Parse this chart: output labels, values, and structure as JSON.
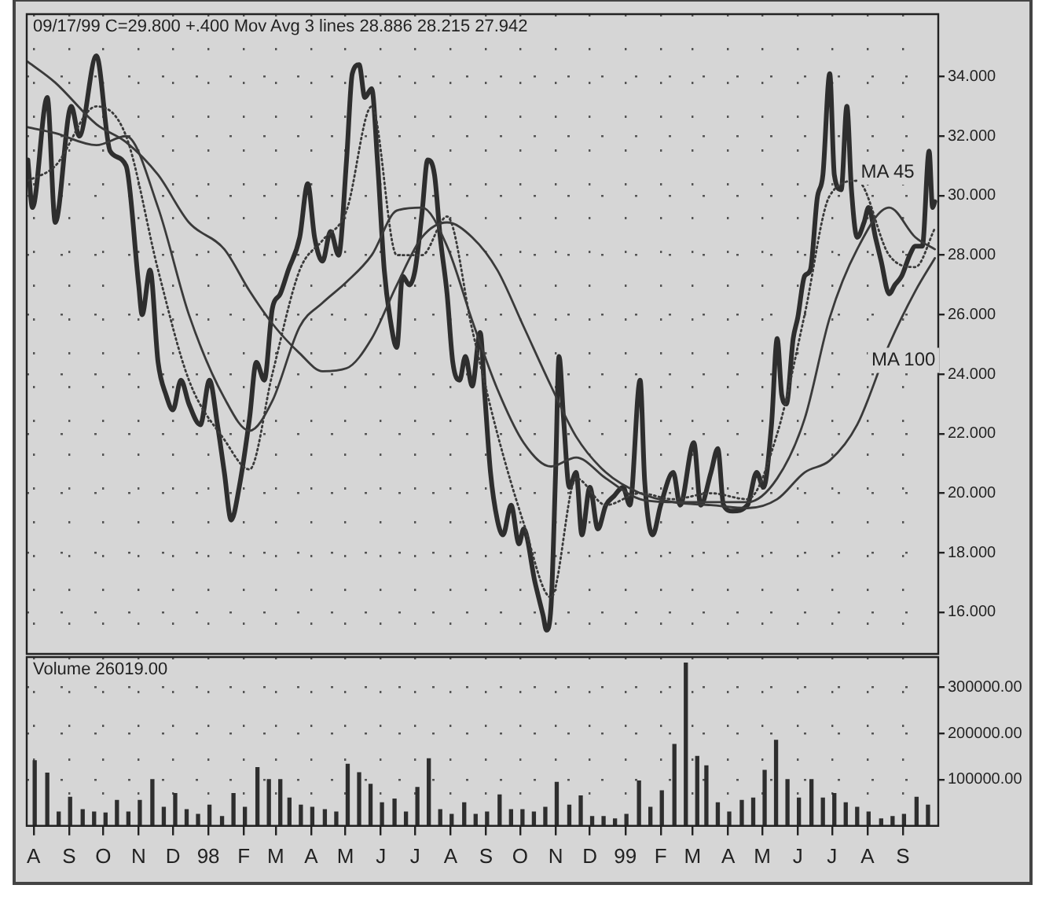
{
  "chart_data": [
    {
      "type": "line",
      "title": "09/17/99 C=29.800 +.400 Mov Avg 3 lines 28.886 28.215 27.942",
      "xlim": [
        "1997-07-14",
        "1999-09-20"
      ],
      "xticks": [
        {
          "value": "1997-07-20",
          "label": null
        },
        {
          "value": "1997-08-20",
          "label": null
        },
        {
          "value": "1997-09-19",
          "label": null
        },
        {
          "value": "1997-10-20",
          "label": null
        },
        {
          "value": "1997-11-19",
          "label": null
        },
        {
          "value": "1997-12-20",
          "label": null
        },
        {
          "value": "1998-01-20",
          "label": null
        },
        {
          "value": "1998-02-17",
          "label": null
        },
        {
          "value": "1998-03-20",
          "label": null
        },
        {
          "value": "1998-04-19",
          "label": null
        },
        {
          "value": "1998-05-20",
          "label": null
        },
        {
          "value": "1998-06-19",
          "label": null
        },
        {
          "value": "1998-07-20",
          "label": null
        },
        {
          "value": "1998-08-20",
          "label": null
        },
        {
          "value": "1998-09-19",
          "label": null
        },
        {
          "value": "1998-10-20",
          "label": null
        },
        {
          "value": "1998-11-19",
          "label": null
        },
        {
          "value": "1998-12-20",
          "label": null
        },
        {
          "value": "1999-01-20",
          "label": null
        },
        {
          "value": "1999-02-17",
          "label": null
        },
        {
          "value": "1999-03-20",
          "label": null
        },
        {
          "value": "1999-04-19",
          "label": null
        },
        {
          "value": "1999-05-20",
          "label": null
        },
        {
          "value": "1999-06-19",
          "label": null
        },
        {
          "value": "1999-07-20",
          "label": null
        },
        {
          "value": "1999-08-20",
          "label": null
        }
      ],
      "ylim": [
        14.6,
        36.1
      ],
      "yticks": [
        {
          "value": 16,
          "label": "16.000"
        },
        {
          "value": 18,
          "label": "18.000"
        },
        {
          "value": 20,
          "label": "20.000"
        },
        {
          "value": 22,
          "label": "22.000"
        },
        {
          "value": 24,
          "label": "24.000"
        },
        {
          "value": 26,
          "label": "26.000"
        },
        {
          "value": 28,
          "label": "28.000"
        },
        {
          "value": 30,
          "label": "30.000"
        },
        {
          "value": 32,
          "label": "32.000"
        },
        {
          "value": 34,
          "label": "34.000"
        }
      ],
      "grid": true,
      "tick_labels": "y",
      "series": [
        {
          "color": "#2e2e2e",
          "line_style": "solid",
          "x": [
            "1997-07-15",
            "1997-07-19",
            "1997-08-01",
            "1997-08-08",
            "1997-08-22",
            "1997-08-29",
            "1997-09-13",
            "1997-09-25",
            "1997-10-09",
            "1997-10-20",
            "1997-10-23",
            "1997-10-30",
            "1997-11-06",
            "1997-11-13",
            "1997-11-19",
            "1997-11-26",
            "1997-12-03",
            "1997-12-13",
            "1997-12-21",
            "1997-12-28",
            "1998-01-03",
            "1998-01-09",
            "1998-01-16",
            "1998-01-25",
            "1998-01-31",
            "1998-02-07",
            "1998-02-14",
            "1998-02-21",
            "1998-02-28",
            "1998-03-10",
            "1998-03-17",
            "1998-03-23",
            "1998-03-30",
            "1998-04-06",
            "1998-04-13",
            "1998-04-20",
            "1998-04-25",
            "1998-05-01",
            "1998-05-06",
            "1998-05-12",
            "1998-05-17",
            "1998-05-23",
            "1998-05-28",
            "1998-06-03",
            "1998-06-08",
            "1998-06-14",
            "1998-06-19",
            "1998-06-25",
            "1998-06-30",
            "1998-07-06",
            "1998-07-11",
            "1998-07-17",
            "1998-07-22",
            "1998-07-28",
            "1998-08-02",
            "1998-08-08",
            "1998-08-15",
            "1998-08-19",
            "1998-08-24",
            "1998-08-30",
            "1998-09-04",
            "1998-09-11",
            "1998-09-18",
            "1998-09-22",
            "1998-10-02",
            "1998-10-09",
            "1998-10-12",
            "1998-10-16",
            "1998-10-20",
            "1998-10-23",
            "1998-10-27",
            "1998-11-01",
            "1998-11-07",
            "1998-11-12",
            "1998-11-19",
            "1998-11-26",
            "1998-12-03",
            "1998-12-10",
            "1998-12-18",
            "1998-12-24",
            "1999-01-02",
            "1999-01-06",
            "1999-01-13",
            "1999-01-20",
            "1999-01-31",
            "1999-02-06",
            "1999-02-18",
            "1999-02-24",
            "1999-03-05",
            "1999-03-11",
            "1999-03-16",
            "1999-03-24",
            "1999-04-06",
            "1999-04-14",
            "1999-04-20",
            "1999-04-27",
            "1999-05-02",
            "1999-05-06",
            "1999-05-10",
            "1999-05-16",
            "1999-05-20",
            "1999-05-26",
            "1999-05-31",
            "1999-06-06",
            "1999-06-11",
            "1999-06-17",
            "1999-06-21",
            "1999-06-27",
            "1999-07-02",
            "1999-07-06",
            "1999-07-11",
            "1999-07-17",
            "1999-07-21",
            "1999-07-27",
            "1999-08-01",
            "1999-08-08",
            "1999-08-13",
            "1999-08-19",
            "1999-08-26",
            "1999-08-31",
            "1999-09-06",
            "1999-09-12",
            "1999-09-15",
            "1999-09-17"
          ],
          "values": [
            31.2,
            29.6,
            33.3,
            29.1,
            33.0,
            32.0,
            34.7,
            31.5,
            31.0,
            27.0,
            26.0,
            27.5,
            24.4,
            23.3,
            22.8,
            23.8,
            23.0,
            22.3,
            23.8,
            22.3,
            20.7,
            19.1,
            20.2,
            22.5,
            24.4,
            23.8,
            26.2,
            26.7,
            27.5,
            28.6,
            30.4,
            28.6,
            27.8,
            28.8,
            28.0,
            31.2,
            34.1,
            34.4,
            33.3,
            33.6,
            31.2,
            27.5,
            25.9,
            24.9,
            27.3,
            27.0,
            27.5,
            29.4,
            31.2,
            30.7,
            28.6,
            26.7,
            24.4,
            23.8,
            24.6,
            23.6,
            25.4,
            23.3,
            20.7,
            19.1,
            18.6,
            19.6,
            18.3,
            18.8,
            17.0,
            15.9,
            15.4,
            16.2,
            20.7,
            24.6,
            22.5,
            20.2,
            20.7,
            18.6,
            20.2,
            18.8,
            19.6,
            19.9,
            20.2,
            19.6,
            23.8,
            20.4,
            18.6,
            19.6,
            20.7,
            19.6,
            21.7,
            19.6,
            20.7,
            21.5,
            19.6,
            19.4,
            19.6,
            20.7,
            20.2,
            22.3,
            25.2,
            23.3,
            23.0,
            25.2,
            25.9,
            27.3,
            27.5,
            29.9,
            30.7,
            34.1,
            30.7,
            30.2,
            33.0,
            30.2,
            28.6,
            29.1,
            29.6,
            28.6,
            27.8,
            26.7,
            27.0,
            27.3,
            28.0,
            28.3,
            28.3,
            31.5,
            29.6,
            29.8
          ]
        },
        {
          "color": "#3a3a3a",
          "line_style": "dotted",
          "x": [
            "1997-07-15",
            "1997-08-08",
            "1997-09-13",
            "1997-10-09",
            "1997-11-06",
            "1997-12-03",
            "1998-01-03",
            "1998-01-25",
            "1998-02-14",
            "1998-03-10",
            "1998-03-30",
            "1998-04-20",
            "1998-05-12",
            "1998-06-03",
            "1998-06-25",
            "1998-07-17",
            "1998-08-08",
            "1998-08-30",
            "1998-09-22",
            "1998-10-16",
            "1998-11-07",
            "1998-12-03",
            "1999-01-02",
            "1999-01-31",
            "1999-03-05",
            "1999-04-06",
            "1999-05-02",
            "1999-05-26",
            "1999-06-17",
            "1999-07-11",
            "1999-08-08",
            "1999-08-31",
            "1999-09-17"
          ],
          "values": [
            30.5,
            31.0,
            33.0,
            32.0,
            27.5,
            23.8,
            21.8,
            20.8,
            24.0,
            27.5,
            28.5,
            29.5,
            33.0,
            28.0,
            28.0,
            29.3,
            25.5,
            22.0,
            19.0,
            16.5,
            20.5,
            19.6,
            20.0,
            19.8,
            20.0,
            19.8,
            22.0,
            26.0,
            30.0,
            30.5,
            28.0,
            27.6,
            28.9
          ]
        },
        {
          "name": "MA 45",
          "color": "#3a3a3a",
          "line_style": "solid",
          "x": [
            "1997-07-15",
            "1997-08-08",
            "1997-09-13",
            "1997-10-09",
            "1997-11-06",
            "1997-12-03",
            "1998-01-03",
            "1998-01-25",
            "1998-02-14",
            "1998-03-10",
            "1998-03-30",
            "1998-04-20",
            "1998-05-12",
            "1998-06-03",
            "1998-06-25",
            "1998-07-17",
            "1998-08-08",
            "1998-08-30",
            "1998-09-22",
            "1998-10-16",
            "1998-11-07",
            "1998-12-03",
            "1999-01-02",
            "1999-01-31",
            "1999-03-05",
            "1999-04-06",
            "1999-05-02",
            "1999-05-26",
            "1999-06-17",
            "1999-07-11",
            "1999-08-08",
            "1999-08-31",
            "1999-09-17"
          ],
          "values": [
            32.3,
            32.1,
            31.7,
            32.0,
            29.6,
            26.0,
            23.2,
            22.1,
            23.1,
            25.6,
            26.4,
            27.1,
            28.0,
            29.5,
            29.6,
            28.3,
            25.8,
            23.5,
            21.7,
            20.9,
            21.2,
            20.5,
            19.8,
            19.7,
            19.7,
            19.7,
            20.5,
            22.5,
            25.9,
            28.2,
            29.6,
            28.6,
            28.2
          ]
        },
        {
          "name": "MA 100",
          "color": "#3a3a3a",
          "line_style": "solid",
          "x": [
            "1997-07-15",
            "1997-08-08",
            "1997-09-13",
            "1997-10-09",
            "1997-11-06",
            "1997-12-03",
            "1998-01-03",
            "1998-01-25",
            "1998-02-14",
            "1998-03-10",
            "1998-03-30",
            "1998-04-20",
            "1998-05-12",
            "1998-06-03",
            "1998-06-25",
            "1998-07-17",
            "1998-08-08",
            "1998-08-30",
            "1998-09-22",
            "1998-10-16",
            "1998-11-07",
            "1998-12-03",
            "1999-01-02",
            "1999-01-31",
            "1999-03-05",
            "1999-04-06",
            "1999-05-02",
            "1999-05-26",
            "1999-06-17",
            "1999-07-11",
            "1999-08-08",
            "1999-08-31",
            "1999-09-17"
          ],
          "values": [
            34.5,
            33.8,
            32.4,
            31.8,
            30.7,
            29.1,
            28.2,
            26.8,
            25.7,
            24.7,
            24.1,
            24.2,
            25.2,
            27.0,
            28.6,
            29.1,
            28.6,
            27.5,
            25.6,
            23.6,
            21.9,
            20.7,
            20.0,
            19.7,
            19.6,
            19.5,
            19.8,
            20.7,
            21.1,
            22.3,
            25.0,
            26.8,
            27.9
          ]
        }
      ],
      "legend": false
    },
    {
      "type": "bar",
      "title": "Volume 26019.00",
      "xlim": [
        "1997-07-14",
        "1999-09-20"
      ],
      "xticks": [
        {
          "value": "1997-07-20",
          "label": "A"
        },
        {
          "value": "1997-08-20",
          "label": "S"
        },
        {
          "value": "1997-09-19",
          "label": "O"
        },
        {
          "value": "1997-10-20",
          "label": "N"
        },
        {
          "value": "1997-11-19",
          "label": "D"
        },
        {
          "value": "1997-12-20",
          "label": "98"
        },
        {
          "value": "1998-01-20",
          "label": "F"
        },
        {
          "value": "1998-02-17",
          "label": "M"
        },
        {
          "value": "1998-03-20",
          "label": "A"
        },
        {
          "value": "1998-04-19",
          "label": "M"
        },
        {
          "value": "1998-05-20",
          "label": "J"
        },
        {
          "value": "1998-06-19",
          "label": "J"
        },
        {
          "value": "1998-07-20",
          "label": "A"
        },
        {
          "value": "1998-08-20",
          "label": "S"
        },
        {
          "value": "1998-09-19",
          "label": "O"
        },
        {
          "value": "1998-10-20",
          "label": "N"
        },
        {
          "value": "1998-11-19",
          "label": "D"
        },
        {
          "value": "1998-12-20",
          "label": "99"
        },
        {
          "value": "1999-01-20",
          "label": "F"
        },
        {
          "value": "1999-02-17",
          "label": "M"
        },
        {
          "value": "1999-03-20",
          "label": "A"
        },
        {
          "value": "1999-04-19",
          "label": "M"
        },
        {
          "value": "1999-05-20",
          "label": "J"
        },
        {
          "value": "1999-06-19",
          "label": "J"
        },
        {
          "value": "1999-07-20",
          "label": "A"
        },
        {
          "value": "1999-08-20",
          "label": "S"
        }
      ],
      "ylim": [
        0,
        365000
      ],
      "yticks": [
        {
          "value": 100000,
          "label": "100000.00"
        },
        {
          "value": 200000,
          "label": "200000.00"
        },
        {
          "value": 300000,
          "label": "300000.00"
        }
      ],
      "grid": true,
      "color": "#2e2e2e",
      "x": [
        "1997-07-21",
        "1997-08-01",
        "1997-08-11",
        "1997-08-21",
        "1997-09-01",
        "1997-09-11",
        "1997-09-21",
        "1997-10-01",
        "1997-10-11",
        "1997-10-21",
        "1997-11-01",
        "1997-11-11",
        "1997-11-21",
        "1997-12-01",
        "1997-12-11",
        "1997-12-21",
        "1998-01-01",
        "1998-01-11",
        "1998-01-21",
        "1998-02-01",
        "1998-02-11",
        "1998-02-21",
        "1998-03-01",
        "1998-03-11",
        "1998-03-21",
        "1998-04-01",
        "1998-04-11",
        "1998-04-21",
        "1998-05-01",
        "1998-05-11",
        "1998-05-21",
        "1998-06-01",
        "1998-06-11",
        "1998-06-21",
        "1998-07-01",
        "1998-07-11",
        "1998-07-21",
        "1998-08-01",
        "1998-08-11",
        "1998-08-21",
        "1998-09-01",
        "1998-09-11",
        "1998-09-21",
        "1998-10-01",
        "1998-10-11",
        "1998-10-21",
        "1998-11-01",
        "1998-11-11",
        "1998-11-21",
        "1998-12-01",
        "1998-12-11",
        "1998-12-21",
        "1999-01-01",
        "1999-01-11",
        "1999-01-21",
        "1999-02-01",
        "1999-02-11",
        "1999-02-21",
        "1999-03-01",
        "1999-03-11",
        "1999-03-21",
        "1999-04-01",
        "1999-04-11",
        "1999-04-21",
        "1999-05-01",
        "1999-05-11",
        "1999-05-21",
        "1999-06-01",
        "1999-06-11",
        "1999-06-21",
        "1999-07-01",
        "1999-07-11",
        "1999-07-21",
        "1999-08-01",
        "1999-08-11",
        "1999-08-21",
        "1999-09-01",
        "1999-09-11"
      ],
      "values": [
        141000,
        114000,
        30000,
        62000,
        35000,
        30000,
        28000,
        55000,
        30000,
        55000,
        100000,
        40000,
        70000,
        35000,
        25000,
        45000,
        20000,
        70000,
        40000,
        126000,
        100000,
        100000,
        60000,
        45000,
        40000,
        35000,
        30000,
        133000,
        115000,
        90000,
        50000,
        58000,
        30000,
        83000,
        145000,
        35000,
        25000,
        50000,
        25000,
        30000,
        67000,
        35000,
        35000,
        30000,
        40000,
        94000,
        45000,
        65000,
        20000,
        20000,
        15000,
        25000,
        97000,
        40000,
        76000,
        176000,
        352000,
        150000,
        130000,
        50000,
        30000,
        55000,
        60000,
        120000,
        185000,
        100000,
        60000,
        100000,
        60000,
        70000,
        50000,
        40000,
        30000,
        15000,
        20000,
        25000,
        62000,
        45000
      ]
    }
  ]
}
